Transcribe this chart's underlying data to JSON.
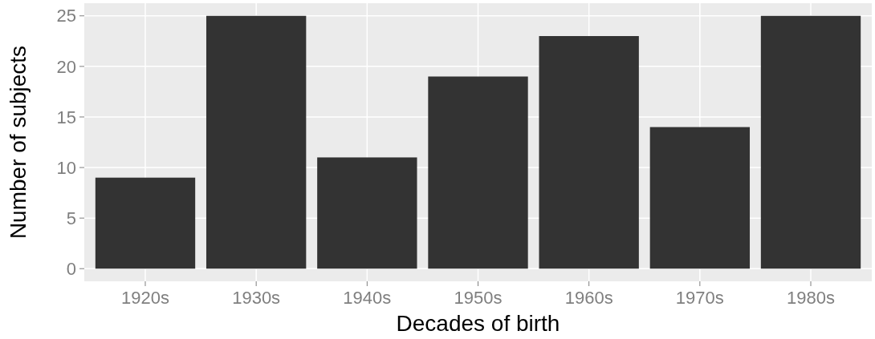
{
  "chart_data": {
    "type": "bar",
    "xlabel": "Decades of birth",
    "ylabel": "Number of subjects",
    "categories": [
      "1920s",
      "1930s",
      "1940s",
      "1950s",
      "1960s",
      "1970s",
      "1980s"
    ],
    "values": [
      9,
      25,
      11,
      19,
      23,
      14,
      25
    ],
    "color": "#333333",
    "ylim": [
      -1.25,
      26.25
    ],
    "yticks": [
      0,
      5,
      10,
      15,
      20,
      25
    ],
    "grid": true
  }
}
